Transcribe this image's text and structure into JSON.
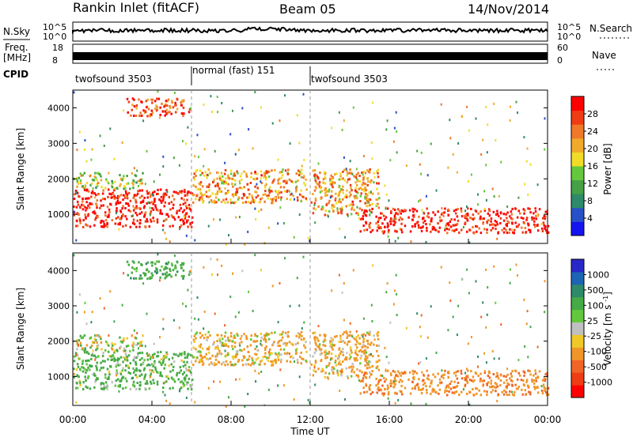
{
  "chart_data": {
    "type": "heatmap",
    "header": {
      "station": "Rankin Inlet (fitACF)",
      "beam": "Beam 05",
      "date": "14/Nov/2014"
    },
    "panels": {
      "nsky": {
        "label": "N.Sky",
        "ticks": [
          "10^5",
          "10^0"
        ],
        "right_label": "N.Search",
        "right_ticks": [
          "10^5",
          "10^0"
        ]
      },
      "freq": {
        "label_line1": "Freq.",
        "label_line2": "[MHz]",
        "ticks": [
          "18",
          "8"
        ],
        "right_label": "Nave",
        "right_ticks": [
          "60",
          "0"
        ]
      },
      "cpid": {
        "label": "CPID",
        "segments": [
          {
            "name": "twofsound 3503",
            "start_h": 0,
            "end_h": 6
          },
          {
            "name": "normal (fast) 151",
            "start_h": 6,
            "end_h": 12
          },
          {
            "name": "twofsound 3503",
            "start_h": 12,
            "end_h": 24
          }
        ]
      }
    },
    "x": {
      "label": "Time UT",
      "ticks": [
        "00:00",
        "04:00",
        "08:00",
        "12:00",
        "16:00",
        "20:00",
        "00:00"
      ],
      "range_hours": [
        0,
        24
      ]
    },
    "y": {
      "label": "Slant Range [km]",
      "ticks": [
        1000,
        2000,
        3000,
        4000
      ],
      "range_km": [
        180,
        4500
      ]
    },
    "power_colorbar": {
      "label": "Power [dB]",
      "ticks": [
        "4",
        "8",
        "12",
        "16",
        "20",
        "24",
        "28"
      ],
      "colors": [
        "#1414f0",
        "#2850c8",
        "#2e8a68",
        "#46a046",
        "#64c83c",
        "#f0dc28",
        "#f0aa2a",
        "#f07828",
        "#f03c14",
        "#ff0000"
      ]
    },
    "velocity_colorbar": {
      "label": "Velocity [m s^-1]",
      "ticks": [
        "1000",
        "500",
        "100",
        "25",
        "-25",
        "-100",
        "-500",
        "-1000"
      ],
      "colors": [
        "#2828c8",
        "#1e64b4",
        "#2e8a68",
        "#46aa46",
        "#64c83c",
        "#c0c0c0",
        "#f0c828",
        "#f09628",
        "#f06428",
        "#f03c14",
        "#ff0000"
      ]
    },
    "features": [
      {
        "start_h": 0.0,
        "end_h": 6.0,
        "range_km": [
          650,
          1750
        ],
        "power_db": 30,
        "velocity_ms": 200
      },
      {
        "start_h": 0.0,
        "end_h": 3.5,
        "range_km": [
          1750,
          2200
        ],
        "power_db": 16,
        "velocity_ms": 30
      },
      {
        "start_h": 6.0,
        "end_h": 11.8,
        "range_km": [
          1350,
          2300
        ],
        "power_db": 22,
        "velocity_ms": -150
      },
      {
        "start_h": 12.0,
        "end_h": 15.5,
        "range_km": [
          1000,
          2300
        ],
        "power_db": 22,
        "velocity_ms": -200
      },
      {
        "start_h": 14.5,
        "end_h": 24.0,
        "range_km": [
          500,
          1200
        ],
        "power_db": 30,
        "velocity_ms": -400
      },
      {
        "start_h": 2.7,
        "end_h": 6.0,
        "range_km": [
          3800,
          4300
        ],
        "power_db": 26,
        "velocity_ms": 300
      }
    ]
  }
}
